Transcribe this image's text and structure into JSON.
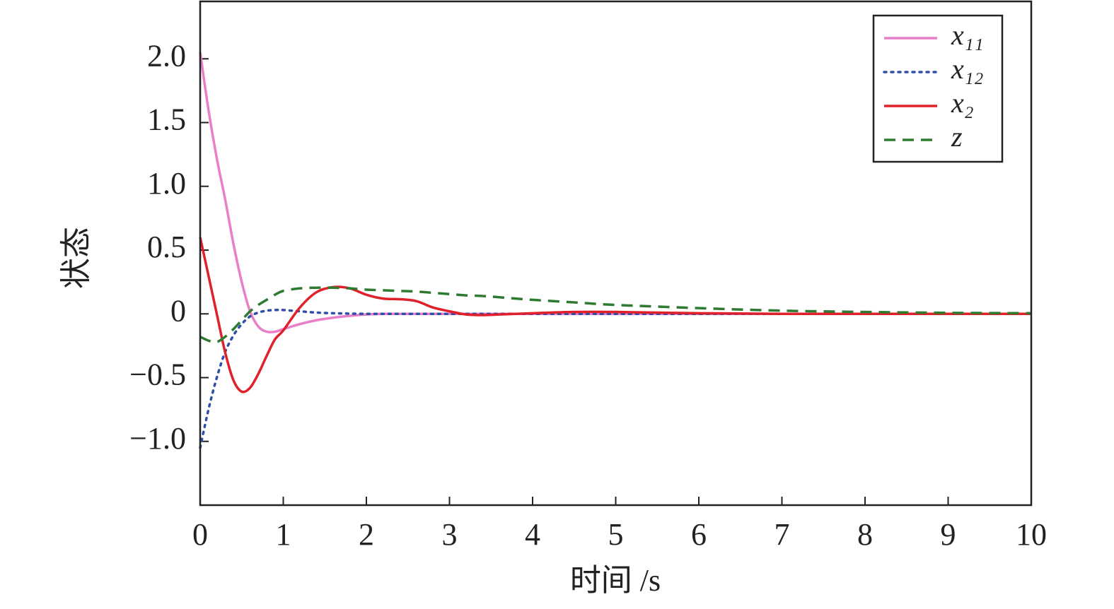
{
  "chart_data": {
    "type": "line",
    "xlabel": "时间 /s",
    "ylabel": "状态",
    "x": [
      0,
      0.1,
      0.2,
      0.3,
      0.4,
      0.5,
      0.6,
      0.7,
      0.8,
      0.9,
      1.0,
      1.2,
      1.4,
      1.6,
      1.8,
      2.0,
      2.2,
      2.4,
      2.6,
      2.8,
      3.0,
      3.2,
      3.4,
      3.6,
      4,
      4.5,
      5,
      6,
      7,
      8,
      9,
      10
    ],
    "series": [
      {
        "name": "x₁₁",
        "color": "#e87fc8",
        "style": "solid",
        "values": [
          2.05,
          1.6,
          1.22,
          0.9,
          0.55,
          0.25,
          0.02,
          -0.1,
          -0.14,
          -0.14,
          -0.12,
          -0.08,
          -0.05,
          -0.03,
          -0.015,
          -0.005,
          0,
          0,
          0,
          0,
          0,
          0,
          0,
          0,
          0,
          0,
          0,
          0,
          0,
          0,
          0,
          0
        ]
      },
      {
        "name": "x₁₂",
        "color": "#2f4fa8",
        "style": "dotted",
        "values": [
          -1.05,
          -0.75,
          -0.5,
          -0.3,
          -0.17,
          -0.08,
          -0.02,
          0.01,
          0.025,
          0.03,
          0.03,
          0.02,
          0.01,
          0.005,
          0.002,
          0,
          0,
          0,
          0,
          0,
          0,
          0,
          0,
          0,
          0,
          0,
          0,
          0,
          0,
          0,
          0,
          0
        ]
      },
      {
        "name": "x₂",
        "color": "#e0202a",
        "style": "solid",
        "values": [
          0.6,
          0.3,
          0,
          -0.3,
          -0.52,
          -0.61,
          -0.58,
          -0.47,
          -0.33,
          -0.2,
          -0.13,
          0.05,
          0.17,
          0.21,
          0.2,
          0.15,
          0.12,
          0.115,
          0.1,
          0.05,
          0.02,
          -0.005,
          -0.01,
          -0.005,
          0.005,
          0.015,
          0.015,
          0.005,
          0,
          0,
          0,
          0
        ]
      },
      {
        "name": "z",
        "color": "#2e7a30",
        "style": "dashed",
        "values": [
          -0.18,
          -0.21,
          -0.22,
          -0.18,
          -0.12,
          -0.05,
          0.02,
          0.07,
          0.11,
          0.15,
          0.18,
          0.2,
          0.205,
          0.205,
          0.2,
          0.19,
          0.185,
          0.18,
          0.175,
          0.165,
          0.155,
          0.145,
          0.14,
          0.13,
          0.11,
          0.09,
          0.07,
          0.045,
          0.025,
          0.015,
          0.008,
          0.005
        ]
      }
    ],
    "xlim": [
      0,
      10
    ],
    "xticks": [
      0,
      1,
      2,
      3,
      4,
      5,
      6,
      7,
      8,
      9,
      10
    ],
    "ylim": [
      -1.5,
      2.45
    ],
    "yticks": [
      {
        "value": -1,
        "label": "−1.0"
      },
      {
        "value": -0.5,
        "label": "−0.5"
      },
      0,
      0.5,
      {
        "value": 1,
        "label": "1.0"
      },
      {
        "value": 1.5,
        "label": "1.5"
      },
      {
        "value": 2,
        "label": "2.0"
      }
    ],
    "grid": false,
    "legend": "upper right"
  }
}
